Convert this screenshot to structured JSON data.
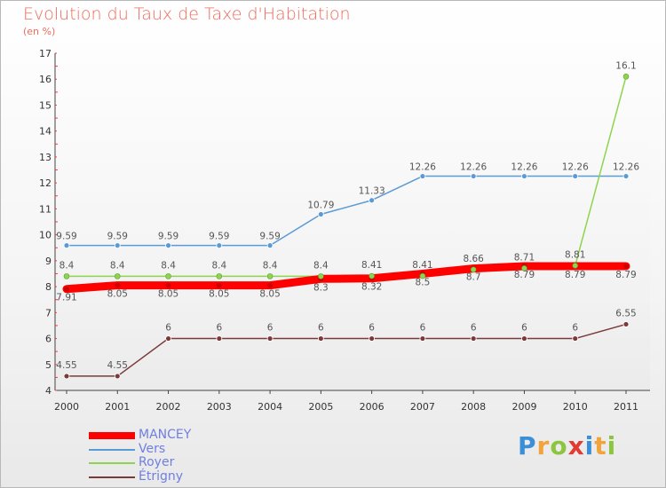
{
  "header": {
    "title": "Evolution du Taux de Taxe d'Habitation",
    "subtitle": "(en %)"
  },
  "logo": {
    "text": "Proxiti",
    "letters": [
      "P",
      "r",
      "o",
      "x",
      "i",
      "t",
      "i"
    ],
    "colors": [
      "#3a8fd8",
      "#f2a33a",
      "#8cc63e",
      "#e03c31",
      "#3a8fd8",
      "#f2a33a",
      "#8cc63e"
    ]
  },
  "chart_data": {
    "type": "line",
    "title": "Evolution du Taux de Taxe d'Habitation",
    "subtitle": "(en %)",
    "xlabel": "",
    "ylabel": "(en %)",
    "x": [
      "2000",
      "2001",
      "2002",
      "2003",
      "2004",
      "2005",
      "2006",
      "2007",
      "2008",
      "2009",
      "2010",
      "2011"
    ],
    "ylim": [
      4,
      17
    ],
    "yticks": [
      "4",
      "5",
      "6",
      "7",
      "8",
      "9",
      "10",
      "11",
      "12",
      "13",
      "14",
      "15",
      "16",
      "17"
    ],
    "grid": false,
    "legend_position": "bottom-left",
    "series": [
      {
        "name": "MANCEY",
        "color": "#ff0000",
        "width": 9,
        "values": [
          7.91,
          8.05,
          8.05,
          8.05,
          8.05,
          8.3,
          8.32,
          8.5,
          8.7,
          8.79,
          8.79,
          8.79
        ],
        "labels": [
          "7.91",
          "8.05",
          "8.05",
          "8.05",
          "8.05",
          "8.3",
          "8.32",
          "8.5",
          "8.7",
          "8.79",
          "8.79",
          "8.79"
        ]
      },
      {
        "name": "Vers",
        "color": "#5b9bd5",
        "width": 1.5,
        "values": [
          9.59,
          9.59,
          9.59,
          9.59,
          9.59,
          10.79,
          11.33,
          12.26,
          12.26,
          12.26,
          12.26,
          12.26
        ],
        "labels": [
          "9.59",
          "9.59",
          "9.59",
          "9.59",
          "9.59",
          "10.79",
          "11.33",
          "12.26",
          "12.26",
          "12.26",
          "12.26",
          "12.26"
        ]
      },
      {
        "name": "Royer",
        "color": "#8ed44e",
        "width": 1.5,
        "values": [
          8.4,
          8.4,
          8.4,
          8.4,
          8.4,
          8.4,
          8.41,
          8.41,
          8.66,
          8.71,
          8.81,
          16.1
        ],
        "labels": [
          "8.4",
          "8.4",
          "8.4",
          "8.4",
          "8.4",
          "8.4",
          "8.41",
          "8.41",
          "8.66",
          "8.71",
          "8.81",
          "16.1"
        ]
      },
      {
        "name": "Étrigny",
        "color": "#7a3a3a",
        "width": 1.5,
        "values": [
          4.55,
          4.55,
          6,
          6,
          6,
          6,
          6,
          6,
          6,
          6,
          6,
          6.55
        ],
        "labels": [
          "4.55",
          "4.55",
          "6",
          "6",
          "6",
          "6",
          "6",
          "6",
          "6",
          "6",
          "6",
          "6.55"
        ]
      }
    ]
  }
}
